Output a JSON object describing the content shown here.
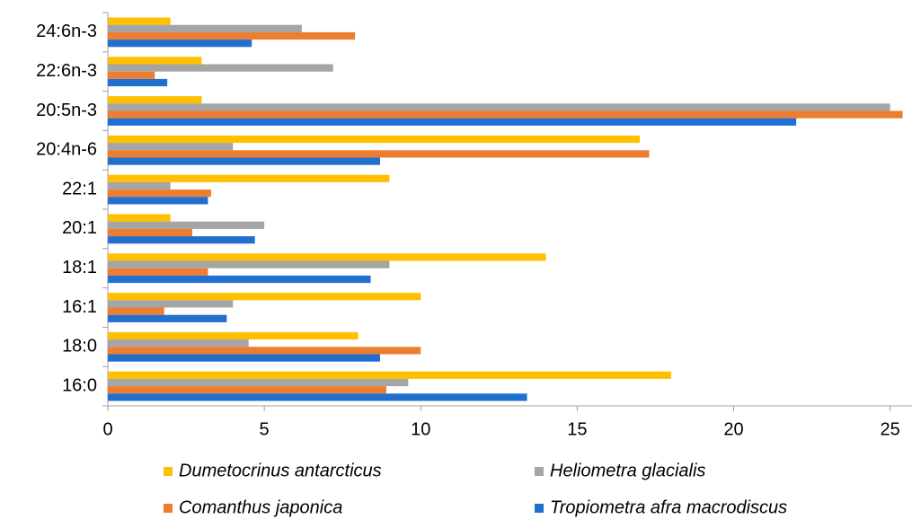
{
  "chart_data": {
    "type": "barh",
    "categories": [
      "16:0",
      "18:0",
      "16:1",
      "18:1",
      "20:1",
      "22:1",
      "20:4n-6",
      "20:5n-3",
      "22:6n-3",
      "24:6n-3"
    ],
    "series": [
      {
        "name": "Dumetocrinus antarcticus",
        "color": "#ffc000",
        "values": [
          18.0,
          8.0,
          10.0,
          14.0,
          2.0,
          9.0,
          17.0,
          3.0,
          3.0,
          2.0
        ]
      },
      {
        "name": "Heliometra glacialis",
        "color": "#a5a5a5",
        "values": [
          9.6,
          4.5,
          4.0,
          9.0,
          5.0,
          2.0,
          4.0,
          25.0,
          7.2,
          6.2
        ]
      },
      {
        "name": "Comanthus japonica",
        "color": "#ed7d31",
        "values": [
          8.9,
          10.0,
          1.8,
          3.2,
          2.7,
          3.3,
          17.3,
          25.4,
          1.5,
          7.9
        ]
      },
      {
        "name": "Tropiometra afra macrodiscus",
        "color": "#2170d0",
        "values": [
          13.4,
          8.7,
          3.8,
          8.4,
          4.7,
          3.2,
          8.7,
          22.0,
          1.9,
          4.6
        ]
      }
    ],
    "xlim": [
      0,
      25.7
    ],
    "xticks": [
      0,
      5,
      10,
      15,
      20,
      25
    ],
    "grid": false
  }
}
